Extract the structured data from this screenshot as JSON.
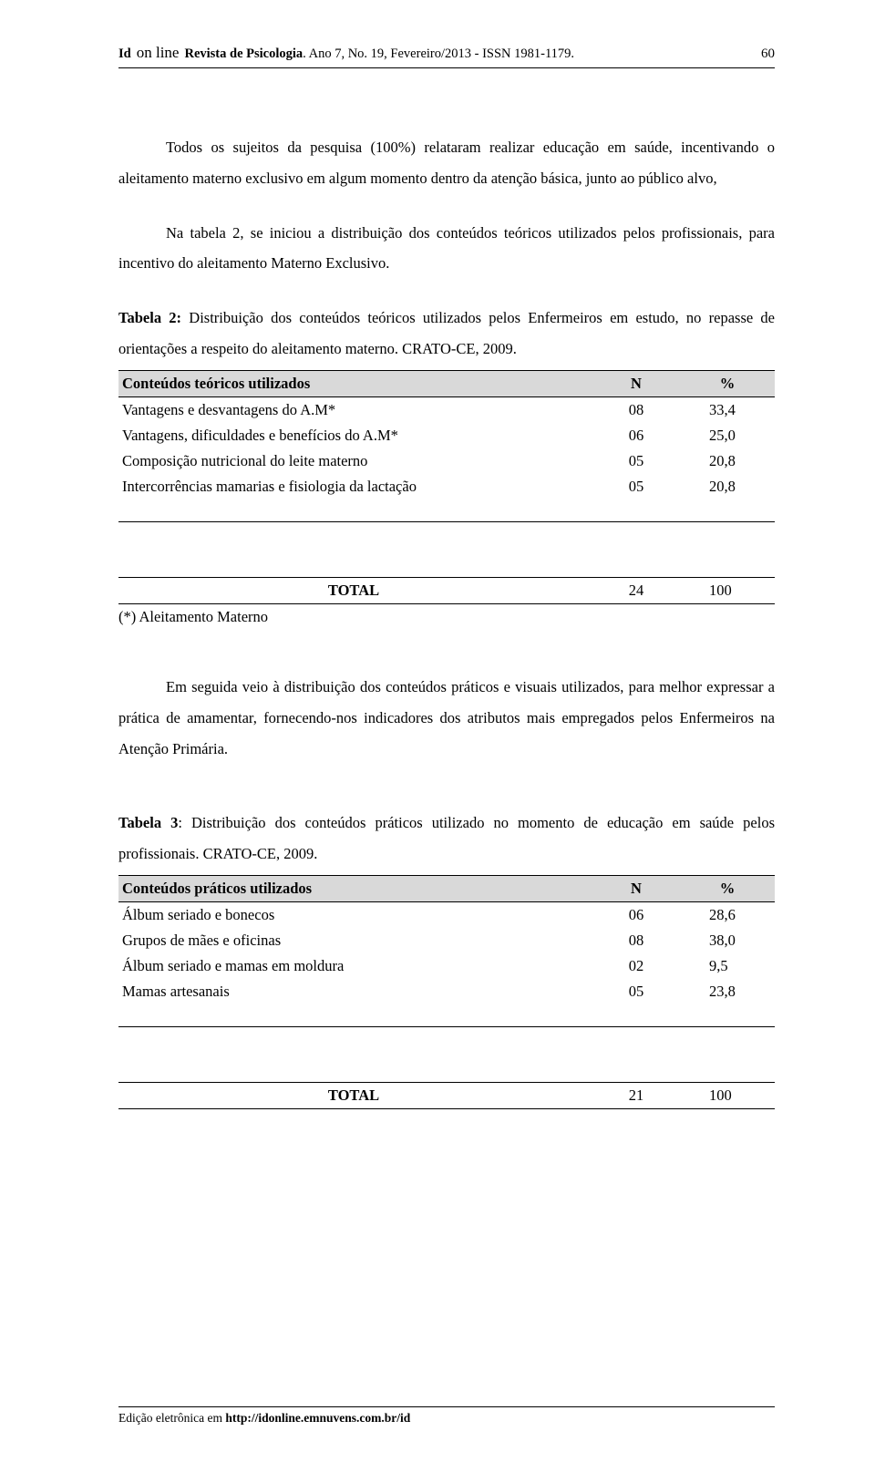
{
  "header": {
    "id_label": "Id",
    "online_label": "on line",
    "journal": "Revista de Psicologia",
    "issue": ". Ano 7, No. 19, Fevereiro/2013 - ISSN 1981-1179.",
    "page_number": "60"
  },
  "para1": "Todos os sujeitos da pesquisa (100%) relataram realizar educação em saúde, incentivando o aleitamento materno exclusivo em algum momento dentro da atenção básica, junto ao público alvo,",
  "para1b": "Na tabela 2, se iniciou a distribuição dos conteúdos teóricos utilizados pelos profissionais, para incentivo do aleitamento Materno Exclusivo.",
  "table2": {
    "caption_bold": "Tabela 2:",
    "caption_rest": " Distribuição dos conteúdos teóricos utilizados pelos Enfermeiros em estudo, no repasse de orientações a respeito do aleitamento materno. CRATO-CE, 2009.",
    "header_desc": "Conteúdos teóricos utilizados",
    "header_n": "N",
    "header_pct": "%",
    "header_bg": "#d9d9d9",
    "rows": [
      {
        "desc": "Vantagens e desvantagens do A.M*",
        "n": "08",
        "pct": "33,4"
      },
      {
        "desc": "Vantagens, dificuldades e benefícios do A.M*",
        "n": "06",
        "pct": "25,0"
      },
      {
        "desc": "Composição nutricional do leite materno",
        "n": "05",
        "pct": "20,8"
      },
      {
        "desc": "Intercorrências mamarias e fisiologia da lactação",
        "n": "05",
        "pct": "20,8"
      }
    ],
    "total_label": "TOTAL",
    "total_n": "24",
    "total_pct": "100",
    "footnote": "(*) Aleitamento Materno"
  },
  "para2": "Em seguida veio à distribuição dos conteúdos práticos e visuais utilizados, para melhor expressar a prática de amamentar, fornecendo-nos indicadores dos atributos mais empregados pelos Enfermeiros na Atenção Primária.",
  "table3": {
    "caption_bold": "Tabela 3",
    "caption_rest": ": Distribuição dos conteúdos práticos utilizado no momento de educação em saúde pelos profissionais. CRATO-CE, 2009.",
    "header_desc": "Conteúdos práticos utilizados",
    "header_n": "N",
    "header_pct": "%",
    "header_bg": "#d9d9d9",
    "rows": [
      {
        "desc": "Álbum seriado e bonecos",
        "n": "06",
        "pct": "28,6"
      },
      {
        "desc": "Grupos de mães e oficinas",
        "n": "08",
        "pct": "38,0"
      },
      {
        "desc": "Álbum seriado e mamas em moldura",
        "n": "02",
        "pct": "  9,5"
      },
      {
        "desc": "Mamas artesanais",
        "n": "05",
        "pct": "23,8"
      }
    ],
    "total_label": "TOTAL",
    "total_n": "21",
    "total_pct": "100"
  },
  "footer": {
    "prefix": "Edição eletrônica em ",
    "url": "http://idonline.emnuvens.com.br/id"
  },
  "colors": {
    "text": "#000000",
    "background": "#ffffff",
    "table_header_bg": "#d9d9d9",
    "rule": "#000000"
  },
  "typography": {
    "body_family": "Times New Roman",
    "body_size_pt": 12,
    "header_size_pt": 10,
    "line_height": 2.05
  }
}
